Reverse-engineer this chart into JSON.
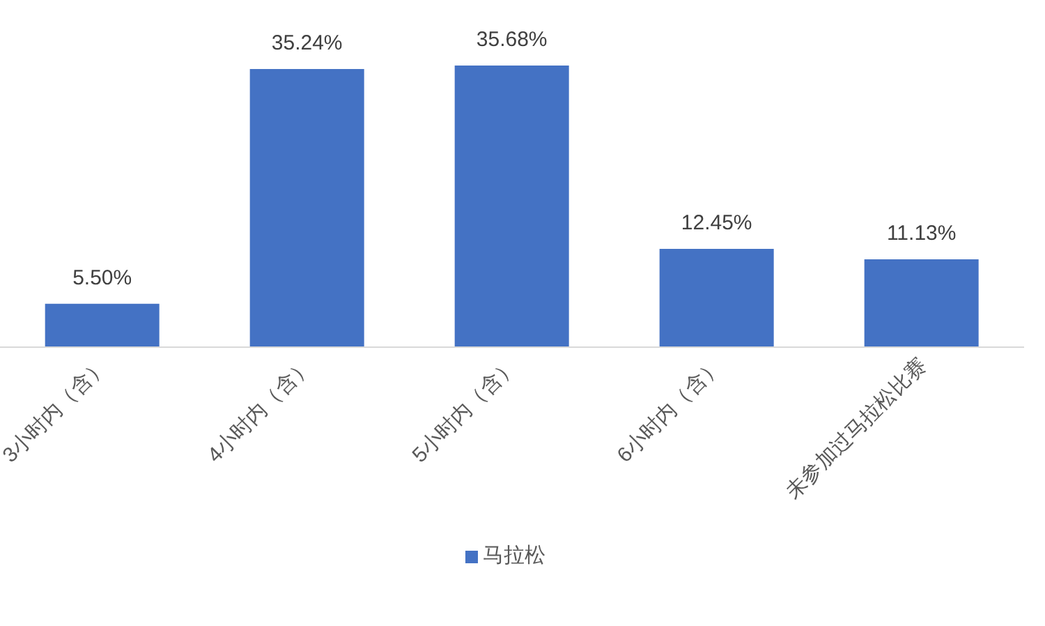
{
  "chart_data": {
    "type": "bar",
    "categories": [
      "3小时内（含）",
      "4小时内（含）",
      "5小时内（含）",
      "6小时内（含）",
      "未参加过马拉松比赛"
    ],
    "series": [
      {
        "name": "马拉松",
        "color": "#4472c4",
        "values": [
          5.5,
          35.24,
          35.68,
          12.45,
          11.13
        ],
        "value_labels": [
          "5.50%",
          "35.24%",
          "35.68%",
          "12.45%",
          "11.13%"
        ]
      }
    ],
    "legend": "bottom",
    "grid": false
  }
}
